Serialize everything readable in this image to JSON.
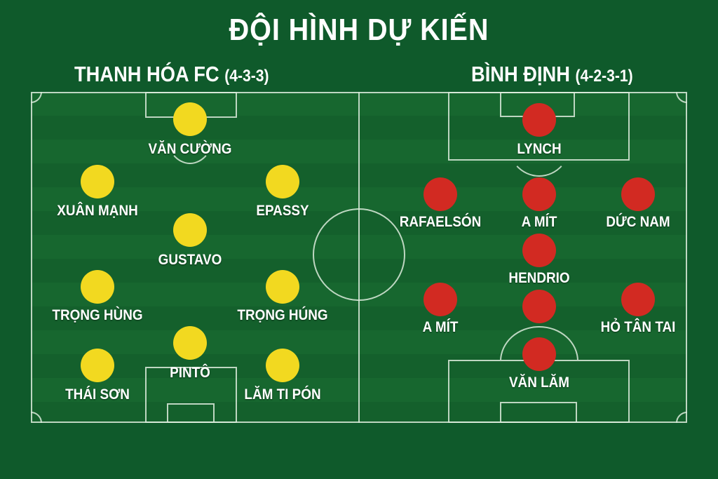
{
  "title": "ĐỘI HÌNH DỰ KIẾN",
  "colors": {
    "background": "#0f5a2b",
    "home_player": "#f2d920",
    "away_player": "#d22a22",
    "lines": "#dcebdc"
  },
  "teams": [
    {
      "name": "THANH HÓA FC",
      "formation": "(4-3-3)",
      "players": [
        "VĂN CƯỜNG",
        "XUÂN MẠNH",
        "EPASSY",
        "GUSTAVO",
        "TRỌNG HÙNG",
        "TRỌNG HÚNG",
        "PINTÔ",
        "THÁI SƠN",
        "LĂM TI PÓN"
      ]
    },
    {
      "name": "BÌNH ĐỊNH",
      "formation": "(4-2-3-1)",
      "players": [
        "LYNCH",
        "RAFAELSÓN",
        "A MÍT",
        "DỨC NAM",
        "HENDRIO",
        "A MÍT",
        "",
        "HỎ TÂN TAI",
        "VĂN LĂM"
      ]
    }
  ]
}
